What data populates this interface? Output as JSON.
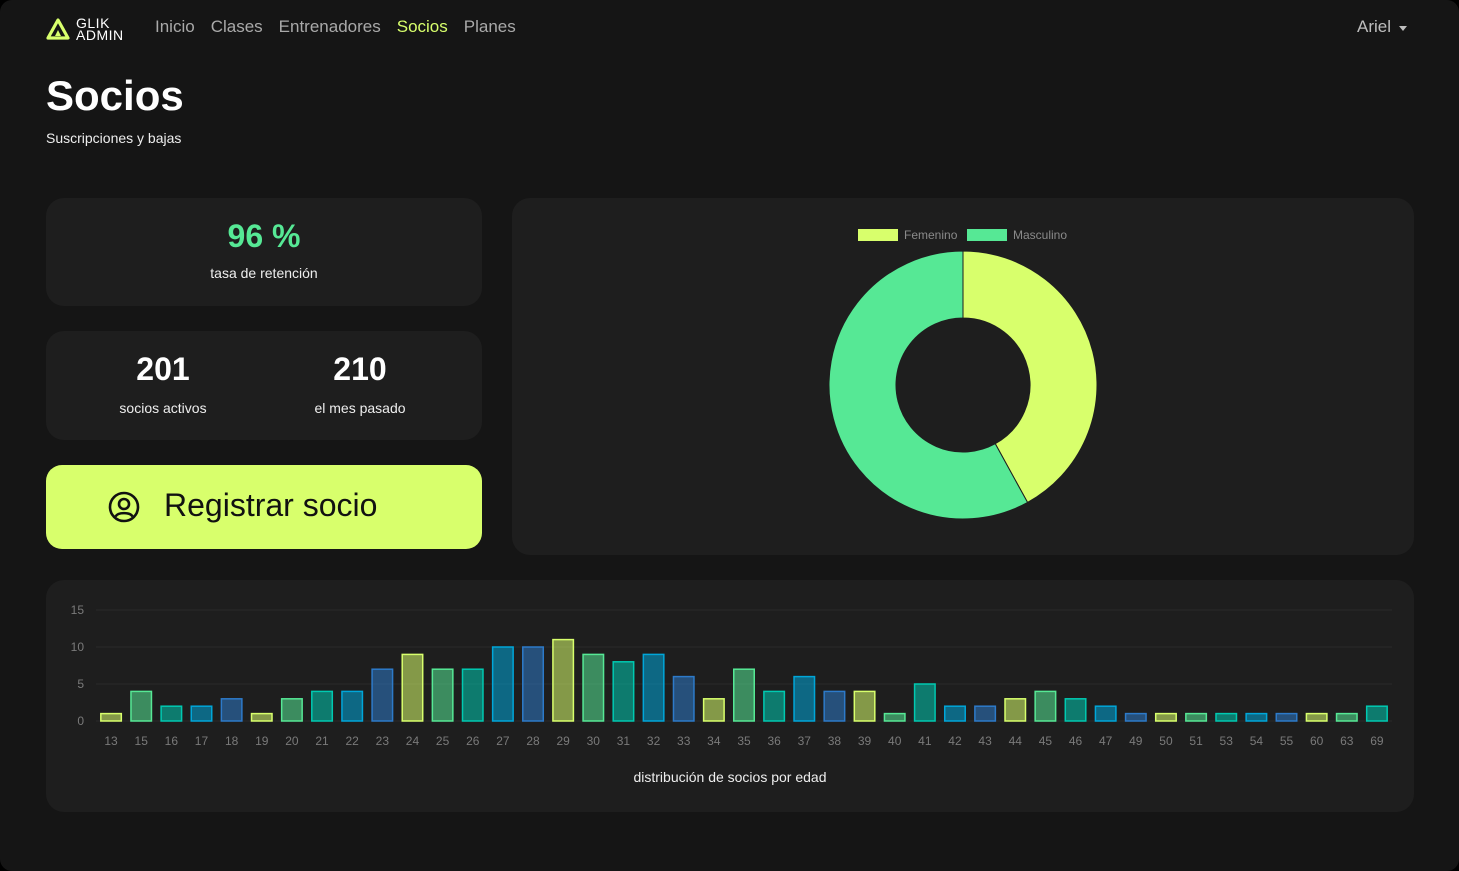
{
  "brand": {
    "line1": "GLIK",
    "line2": "ADMIN",
    "accent": "#d8ff6c"
  },
  "nav": {
    "items": [
      {
        "label": "Inicio",
        "active": false
      },
      {
        "label": "Clases",
        "active": false
      },
      {
        "label": "Entrenadores",
        "active": false
      },
      {
        "label": "Socios",
        "active": true
      },
      {
        "label": "Planes",
        "active": false
      }
    ],
    "user": "Ariel"
  },
  "page": {
    "title": "Socios",
    "subtitle": "Suscripciones y bajas"
  },
  "retention": {
    "value": "96 %",
    "label": "tasa de retención",
    "color": "#56e895"
  },
  "members": {
    "active": {
      "value": "201",
      "label": "socios activos"
    },
    "last_month": {
      "value": "210",
      "label": "el mes pasado"
    }
  },
  "register_button": {
    "label": "Registrar socio",
    "icon": "user-circle-icon"
  },
  "chart_data": [
    {
      "type": "pie",
      "variant": "doughnut",
      "legend_position": "top",
      "labels": [
        "Femenino",
        "Masculino"
      ],
      "values": [
        42,
        58
      ],
      "colors": [
        "#d8ff6c",
        "#56e895"
      ]
    },
    {
      "type": "bar",
      "xlabel": "distribución de socios por edad",
      "ylabel": "",
      "ylim": [
        0,
        15
      ],
      "yticks": [
        0,
        5,
        10,
        15
      ],
      "grid": true,
      "categories": [
        "13",
        "15",
        "16",
        "17",
        "18",
        "19",
        "20",
        "21",
        "22",
        "23",
        "24",
        "25",
        "26",
        "27",
        "28",
        "29",
        "30",
        "31",
        "32",
        "33",
        "34",
        "35",
        "36",
        "37",
        "38",
        "39",
        "40",
        "41",
        "42",
        "43",
        "44",
        "45",
        "46",
        "47",
        "49",
        "50",
        "51",
        "53",
        "54",
        "55",
        "60",
        "63",
        "69"
      ],
      "values": [
        1,
        4,
        2,
        2,
        3,
        1,
        3,
        4,
        4,
        7,
        9,
        7,
        7,
        10,
        10,
        11,
        9,
        8,
        9,
        6,
        3,
        7,
        4,
        6,
        4,
        4,
        1,
        5,
        2,
        2,
        3,
        4,
        3,
        2,
        1,
        1,
        1,
        1,
        1,
        1,
        1,
        1,
        2
      ],
      "palette": [
        "#d8ff6c",
        "#56e895",
        "#00c9b1",
        "#00a6d9",
        "#2d7ac9"
      ]
    }
  ]
}
